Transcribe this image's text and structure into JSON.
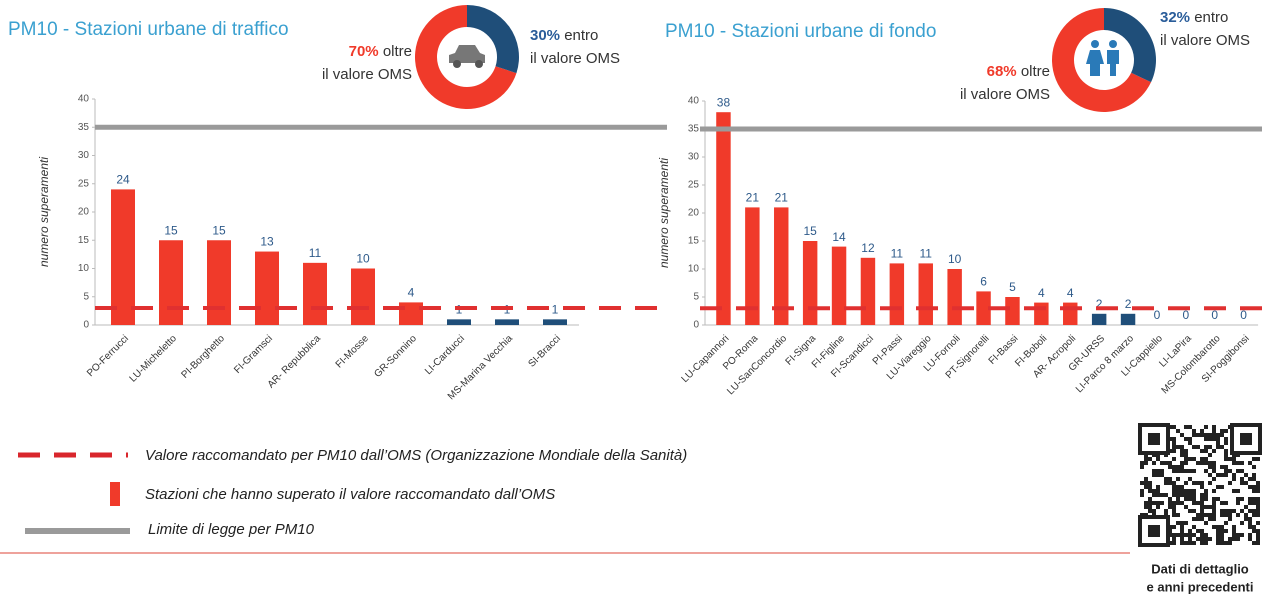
{
  "chart_data": [
    {
      "type": "bar",
      "title": "PM10 - Stazioni urbane di traffico",
      "y_label": "numero superamenti",
      "categories": [
        "PO-Ferrucci",
        "LU-Micheletto",
        "PI-Borghetto",
        "FI-Gramsci",
        "AR- Repubblica",
        "FI-Mosse",
        "GR-Sonnino",
        "LI-Carducci",
        "MS-Marina Vecchia",
        "SI-Bracci"
      ],
      "values": [
        24,
        15,
        15,
        13,
        11,
        10,
        4,
        1,
        1,
        1
      ],
      "colors": [
        "#f03a2a",
        "#f03a2a",
        "#f03a2a",
        "#f03a2a",
        "#f03a2a",
        "#f03a2a",
        "#f03a2a",
        "#1f4e79",
        "#1f4e79",
        "#1f4e79"
      ],
      "ylim": [
        0,
        40
      ],
      "yticks": [
        0,
        5,
        10,
        15,
        20,
        25,
        30,
        35,
        40
      ],
      "reference_lines": [
        {
          "value": 35,
          "color": "#9a9a9a",
          "style": "solid"
        },
        {
          "value": 3,
          "color": "#e03030",
          "style": "dashed"
        }
      ]
    },
    {
      "type": "pie",
      "categories": [
        "oltre\nil valore OMS",
        "entro\nil valore OMS"
      ],
      "values": [
        70,
        30
      ],
      "value_labels": [
        "70%",
        "30%"
      ],
      "colors": [
        "#f03a2a",
        "#1f4e79"
      ]
    },
    {
      "type": "bar",
      "title": "PM10 - Stazioni urbane di fondo",
      "y_label": "numero superamenti",
      "categories": [
        "LU-Capannori",
        "PO-Roma",
        "LU-SanConcordio",
        "FI-Signa",
        "FI-Figline",
        "FI-Scandicci",
        "PI-Passi",
        "LU-Viareggio",
        "LU-Fornoli",
        "PT-Signorelli",
        "FI-Bassi",
        "FI-Boboli",
        "AR- Acropoli",
        "GR-URSS",
        "LI-Parco 8 marzo",
        "LI-Cappiello",
        "LI-LaPira",
        "MS-Colombarotto",
        "SI-Poggibonsi"
      ],
      "values": [
        38,
        21,
        21,
        15,
        14,
        12,
        11,
        11,
        10,
        6,
        5,
        4,
        4,
        2,
        2,
        0,
        0,
        0,
        0
      ],
      "colors": [
        "#f03a2a",
        "#f03a2a",
        "#f03a2a",
        "#f03a2a",
        "#f03a2a",
        "#f03a2a",
        "#f03a2a",
        "#f03a2a",
        "#f03a2a",
        "#f03a2a",
        "#f03a2a",
        "#f03a2a",
        "#f03a2a",
        "#1f4e79",
        "#1f4e79",
        "#1f4e79",
        "#1f4e79",
        "#1f4e79",
        "#1f4e79"
      ],
      "ylim": [
        0,
        40
      ],
      "yticks": [
        0,
        5,
        10,
        15,
        20,
        25,
        30,
        35,
        40
      ],
      "reference_lines": [
        {
          "value": 35,
          "color": "#9a9a9a",
          "style": "solid"
        },
        {
          "value": 3,
          "color": "#e03030",
          "style": "dashed"
        }
      ]
    },
    {
      "type": "pie",
      "categories": [
        "oltre\nil valore OMS",
        "entro\nil valore OMS"
      ],
      "values": [
        68,
        32
      ],
      "value_labels": [
        "68%",
        "32%"
      ],
      "colors": [
        "#f03a2a",
        "#1f4e79"
      ]
    }
  ],
  "legend": [
    "Valore raccomandato per PM10 dall’OMS (Organizzazione Mondiale della Sanità)",
    "Stazioni che hanno superato il valore raccomandato dall’OMS",
    "Limite di legge per PM10"
  ],
  "qr_caption": [
    "Dati di dettaglio",
    "e anni precedenti"
  ]
}
